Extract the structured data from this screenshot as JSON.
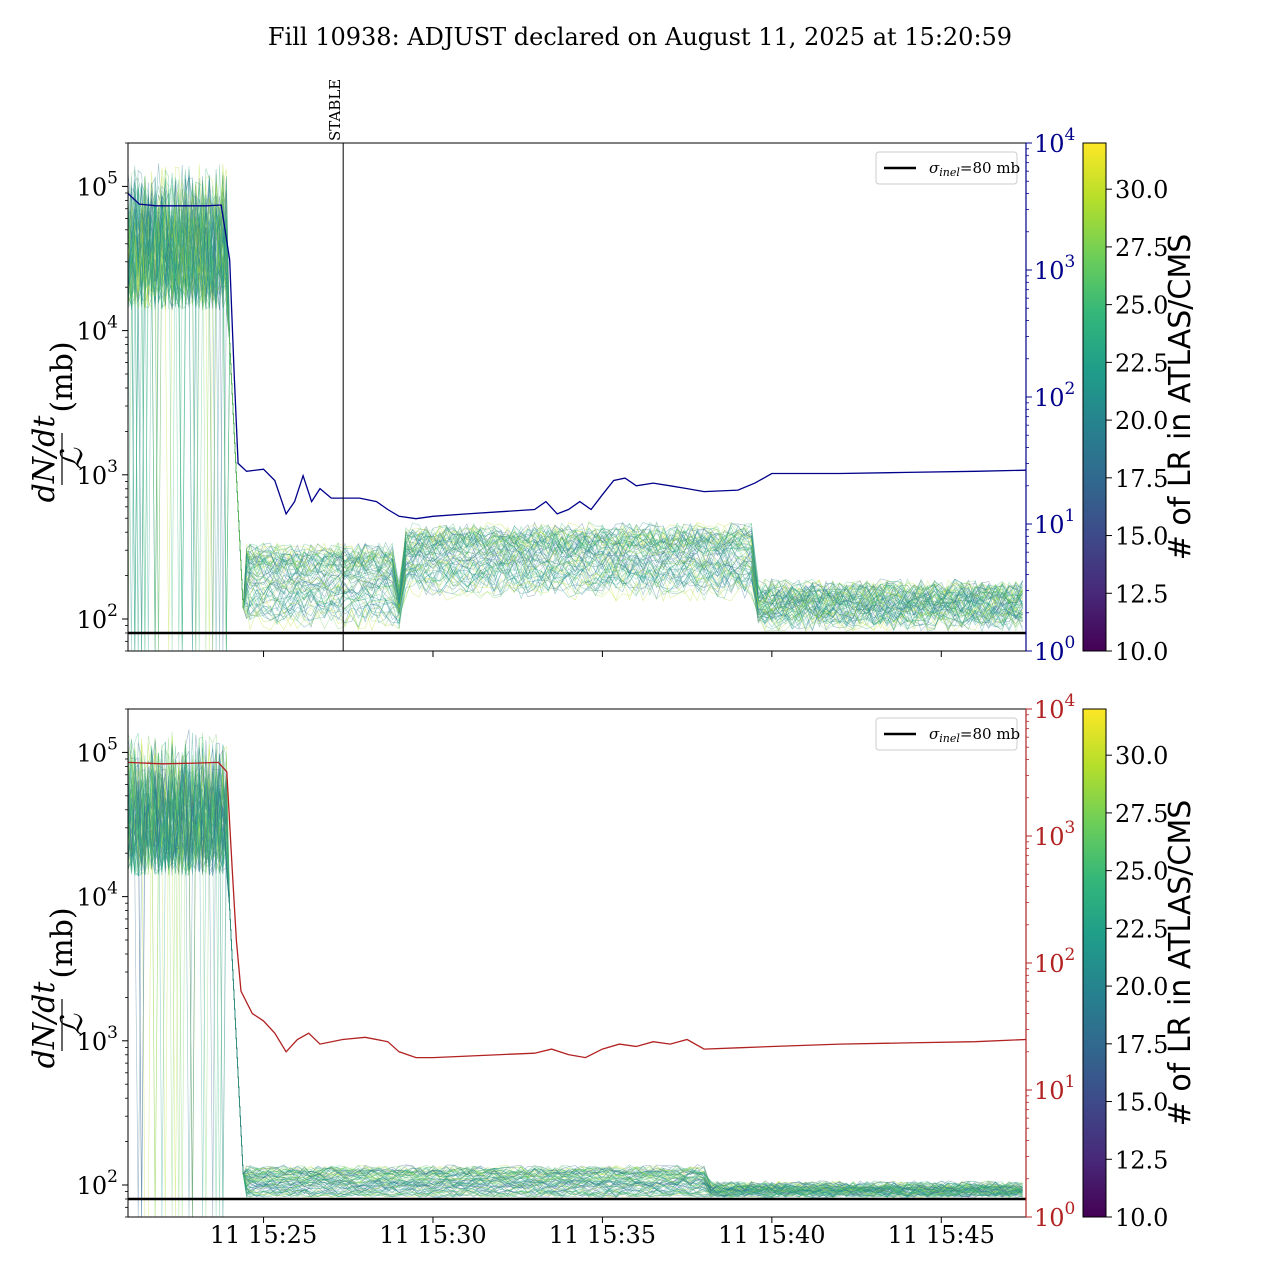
{
  "title": "Fill 10938: ADJUST declared on August 11, 2025 at 15:20:59",
  "colors": {
    "upper_right_axis": "#00008b",
    "lower_right_axis": "#b22222",
    "sigma_line": "#000000",
    "viridis": [
      "#440154",
      "#482878",
      "#3e4989",
      "#31688e",
      "#26828e",
      "#1f9e89",
      "#35b779",
      "#6ece58",
      "#b5de2b",
      "#fde725"
    ]
  },
  "chart_data": [
    {
      "type": "line",
      "panel": "upper",
      "ylabel": "dN/dt / ℒ (mb)",
      "ylabel_parts": {
        "num": "dN/dt",
        "den": "ℒ",
        "unit": "(mb)"
      },
      "y_scale": "log",
      "ylim": [
        60,
        200000
      ],
      "y_ticks": [
        {
          "v": 100,
          "base": "10",
          "exp": "2"
        },
        {
          "v": 1000,
          "base": "10",
          "exp": "3"
        },
        {
          "v": 10000,
          "base": "10",
          "exp": "4"
        },
        {
          "v": 100000,
          "base": "10",
          "exp": "5"
        }
      ],
      "x_time_range": [
        "2025-08-11 15:21:00",
        "2025-08-11 15:47:30"
      ],
      "right_axis": {
        "scale": "log",
        "ylim": [
          1,
          10000
        ],
        "color": "#00008b",
        "ticks": [
          {
            "v": 1,
            "base": "10",
            "exp": "0"
          },
          {
            "v": 10,
            "base": "10",
            "exp": "1"
          },
          {
            "v": 100,
            "base": "10",
            "exp": "2"
          },
          {
            "v": 1000,
            "base": "10",
            "exp": "3"
          },
          {
            "v": 10000,
            "base": "10",
            "exp": "4"
          }
        ]
      },
      "right_series": [
        [
          "15:21:00",
          4000
        ],
        [
          "15:21:20",
          3300
        ],
        [
          "15:21:50",
          3200
        ],
        [
          "15:22:30",
          3200
        ],
        [
          "15:23:20",
          3200
        ],
        [
          "15:23:45",
          3250
        ],
        [
          "15:24:00",
          1200
        ],
        [
          "15:24:08",
          150
        ],
        [
          "15:24:15",
          30
        ],
        [
          "15:24:30",
          26
        ],
        [
          "15:25:00",
          27
        ],
        [
          "15:25:20",
          22
        ],
        [
          "15:25:40",
          12
        ],
        [
          "15:25:55",
          15
        ],
        [
          "15:26:10",
          24
        ],
        [
          "15:26:25",
          15
        ],
        [
          "15:26:40",
          19
        ],
        [
          "15:27:00",
          16
        ],
        [
          "15:27:20",
          16
        ],
        [
          "15:27:50",
          16
        ],
        [
          "15:28:20",
          15
        ],
        [
          "15:28:40",
          13
        ],
        [
          "15:29:00",
          11.5
        ],
        [
          "15:29:30",
          11
        ],
        [
          "15:30:00",
          11.5
        ],
        [
          "15:31:00",
          12
        ],
        [
          "15:32:00",
          12.5
        ],
        [
          "15:33:00",
          13
        ],
        [
          "15:33:20",
          15
        ],
        [
          "15:33:40",
          12
        ],
        [
          "15:34:00",
          13
        ],
        [
          "15:34:20",
          15
        ],
        [
          "15:34:40",
          13
        ],
        [
          "15:35:00",
          17
        ],
        [
          "15:35:20",
          22
        ],
        [
          "15:35:40",
          23
        ],
        [
          "15:36:00",
          20
        ],
        [
          "15:36:30",
          21
        ],
        [
          "15:37:00",
          20
        ],
        [
          "15:37:30",
          19
        ],
        [
          "15:38:00",
          18
        ],
        [
          "15:39:00",
          18.5
        ],
        [
          "15:39:30",
          21
        ],
        [
          "15:40:00",
          25
        ],
        [
          "15:42:00",
          25
        ],
        [
          "15:44:00",
          25.5
        ],
        [
          "15:46:00",
          26
        ],
        [
          "15:47:30",
          26.5
        ]
      ],
      "colored_band": {
        "before_drop": [
          5000,
          150000
        ],
        "after_drop_low": 85,
        "after_drop_mid": [
          150,
          400
        ],
        "late": [
          95,
          160
        ]
      },
      "reference_line": {
        "label": "σinel=80 mb",
        "label_main": "σ",
        "label_sub": "inel",
        "label_rest": "=80 mb",
        "y": 80
      },
      "vertical_marker": {
        "label": "STABLE",
        "x": "15:27:21"
      },
      "legend": "top-right",
      "colorbar": {
        "label": "# of LR in ATLAS/CMS",
        "range": [
          10,
          32
        ],
        "ticks": [
          "10.0",
          "12.5",
          "15.0",
          "17.5",
          "20.0",
          "22.5",
          "25.0",
          "27.5",
          "30.0"
        ]
      }
    },
    {
      "type": "line",
      "panel": "lower",
      "ylabel": "dN/dt / ℒ (mb)",
      "ylabel_parts": {
        "num": "dN/dt",
        "den": "ℒ",
        "unit": "(mb)"
      },
      "y_scale": "log",
      "ylim": [
        60,
        200000
      ],
      "y_ticks": [
        {
          "v": 100,
          "base": "10",
          "exp": "2"
        },
        {
          "v": 1000,
          "base": "10",
          "exp": "3"
        },
        {
          "v": 10000,
          "base": "10",
          "exp": "4"
        },
        {
          "v": 100000,
          "base": "10",
          "exp": "5"
        }
      ],
      "x_ticks": [
        "11 15:25",
        "11 15:30",
        "11 15:35",
        "11 15:40",
        "11 15:45"
      ],
      "x_tick_times": [
        "15:25:00",
        "15:30:00",
        "15:35:00",
        "15:40:00",
        "15:45:00"
      ],
      "right_axis": {
        "scale": "log",
        "ylim": [
          1,
          10000
        ],
        "color": "#b22222",
        "ticks": [
          {
            "v": 1,
            "base": "10",
            "exp": "0"
          },
          {
            "v": 10,
            "base": "10",
            "exp": "1"
          },
          {
            "v": 100,
            "base": "10",
            "exp": "2"
          },
          {
            "v": 1000,
            "base": "10",
            "exp": "3"
          },
          {
            "v": 10000,
            "base": "10",
            "exp": "4"
          }
        ]
      },
      "right_series": [
        [
          "15:21:00",
          3800
        ],
        [
          "15:22:00",
          3700
        ],
        [
          "15:23:00",
          3750
        ],
        [
          "15:23:40",
          3800
        ],
        [
          "15:23:55",
          3200
        ],
        [
          "15:24:05",
          500
        ],
        [
          "15:24:12",
          150
        ],
        [
          "15:24:20",
          60
        ],
        [
          "15:24:40",
          40
        ],
        [
          "15:25:00",
          35
        ],
        [
          "15:25:20",
          28
        ],
        [
          "15:25:40",
          20
        ],
        [
          "15:26:00",
          25
        ],
        [
          "15:26:20",
          28
        ],
        [
          "15:26:40",
          23
        ],
        [
          "15:27:20",
          25
        ],
        [
          "15:28:00",
          26
        ],
        [
          "15:28:40",
          24
        ],
        [
          "15:29:00",
          20
        ],
        [
          "15:29:30",
          18
        ],
        [
          "15:30:00",
          18
        ],
        [
          "15:31:00",
          18.5
        ],
        [
          "15:32:00",
          19
        ],
        [
          "15:33:00",
          19.5
        ],
        [
          "15:33:30",
          21
        ],
        [
          "15:34:00",
          19
        ],
        [
          "15:34:30",
          18
        ],
        [
          "15:35:00",
          21
        ],
        [
          "15:35:30",
          23
        ],
        [
          "15:36:00",
          22
        ],
        [
          "15:36:30",
          24
        ],
        [
          "15:37:00",
          23
        ],
        [
          "15:37:30",
          25
        ],
        [
          "15:38:00",
          21
        ],
        [
          "15:39:00",
          21.5
        ],
        [
          "15:40:00",
          22
        ],
        [
          "15:42:00",
          23
        ],
        [
          "15:44:00",
          23.5
        ],
        [
          "15:46:00",
          24
        ],
        [
          "15:47:30",
          25
        ]
      ],
      "colored_band": {
        "before_drop": [
          5000,
          150000
        ],
        "after_drop": [
          85,
          130
        ],
        "late": [
          85,
          100
        ]
      },
      "reference_line": {
        "label": "σinel=80 mb",
        "label_main": "σ",
        "label_sub": "inel",
        "label_rest": "=80 mb",
        "y": 80
      },
      "legend": "top-right",
      "colorbar": {
        "label": "# of LR in ATLAS/CMS",
        "range": [
          10,
          32
        ],
        "ticks": [
          "10.0",
          "12.5",
          "15.0",
          "17.5",
          "20.0",
          "22.5",
          "25.0",
          "27.5",
          "30.0"
        ]
      }
    }
  ]
}
